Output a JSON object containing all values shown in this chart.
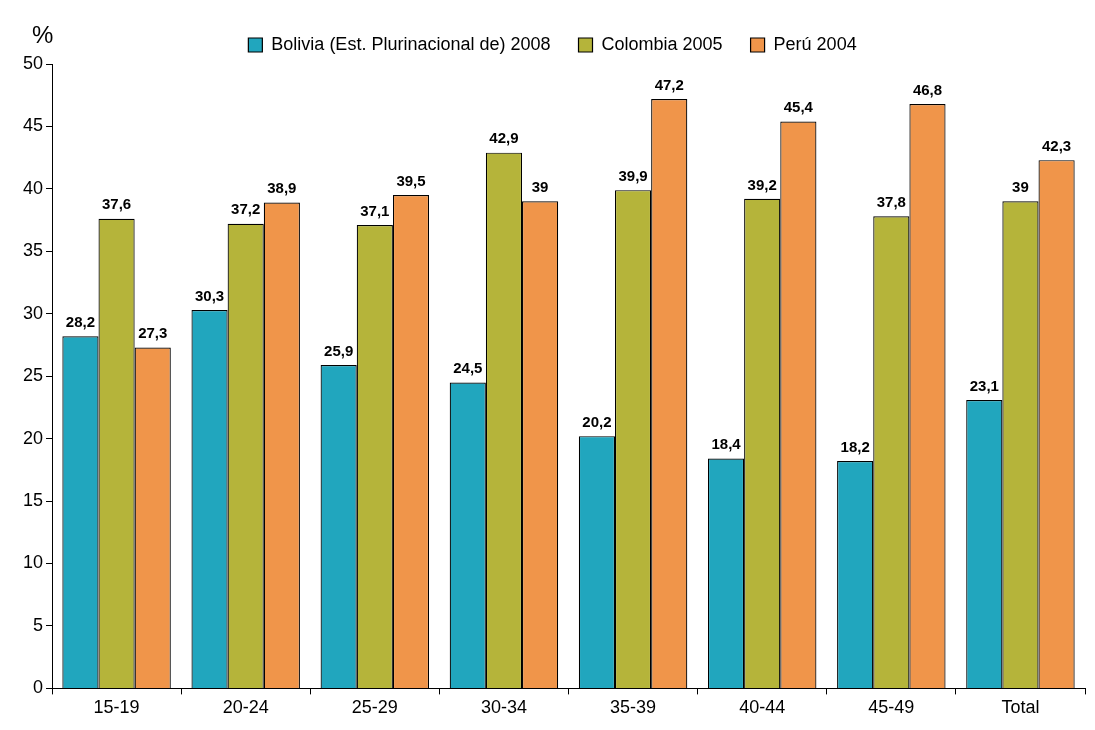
{
  "chart_data": {
    "type": "bar",
    "ylabel": "%",
    "categories": [
      "15-19",
      "20-24",
      "25-29",
      "30-34",
      "35-39",
      "40-44",
      "45-49",
      "Total"
    ],
    "series": [
      {
        "name": "Bolivia (Est. Plurinacional de) 2008",
        "color": "#21a6be",
        "values": [
          28.2,
          30.3,
          25.9,
          24.5,
          20.2,
          18.4,
          18.2,
          23.1
        ],
        "value_labels": [
          "28,2",
          "30,3",
          "25,9",
          "24,5",
          "20,2",
          "18,4",
          "18,2",
          "23,1"
        ]
      },
      {
        "name": "Colombia 2005",
        "color": "#b5b43a",
        "values": [
          37.6,
          37.2,
          37.1,
          42.9,
          39.9,
          39.2,
          37.8,
          39
        ],
        "value_labels": [
          "37,6",
          "37,2",
          "37,1",
          "42,9",
          "39,9",
          "39,2",
          "37,8",
          "39"
        ]
      },
      {
        "name": "Perú 2004",
        "color": "#f0954a",
        "values": [
          27.3,
          38.9,
          39.5,
          39,
          47.2,
          45.4,
          46.8,
          42.3
        ],
        "value_labels": [
          "27,3",
          "38,9",
          "39,5",
          "39",
          "47,2",
          "45,4",
          "46,8",
          "42,3"
        ]
      }
    ],
    "ylim": [
      0,
      50
    ],
    "yticks": [
      0,
      5,
      10,
      15,
      20,
      25,
      30,
      35,
      40,
      45,
      50
    ],
    "grid": false,
    "legend": "top"
  }
}
